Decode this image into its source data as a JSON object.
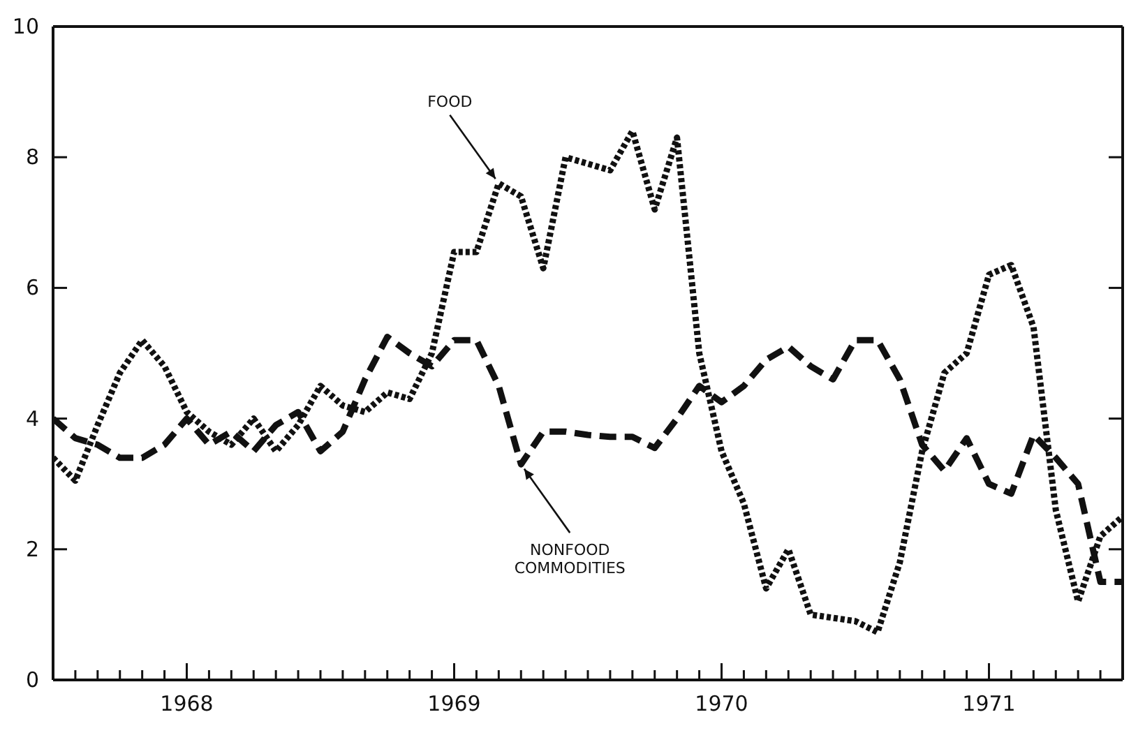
{
  "chart_data": {
    "type": "line",
    "x": [
      "1968-01",
      "1968-02",
      "1968-03",
      "1968-04",
      "1968-05",
      "1968-06",
      "1968-07",
      "1968-08",
      "1968-09",
      "1968-10",
      "1968-11",
      "1968-12",
      "1969-01",
      "1969-02",
      "1969-03",
      "1969-04",
      "1969-05",
      "1969-06",
      "1969-07",
      "1969-08",
      "1969-09",
      "1969-10",
      "1969-11",
      "1969-12",
      "1970-01",
      "1970-02",
      "1970-03",
      "1970-04",
      "1970-05",
      "1970-06",
      "1970-07",
      "1970-08",
      "1970-09",
      "1970-10",
      "1970-11",
      "1970-12",
      "1971-01",
      "1971-02",
      "1971-03",
      "1971-04",
      "1971-05",
      "1971-06",
      "1971-07",
      "1971-08",
      "1971-09",
      "1971-10",
      "1971-11",
      "1971-12",
      "1972-01"
    ],
    "series": [
      {
        "color": "#111111",
        "line_style": "dotted",
        "values": [
          3.4,
          3.05,
          3.9,
          4.7,
          5.2,
          4.8,
          4.1,
          3.8,
          3.6,
          4.0,
          3.5,
          3.9,
          4.5,
          4.2,
          4.1,
          4.4,
          4.3,
          5.0,
          6.55,
          6.55,
          7.6,
          7.4,
          6.3,
          8.0,
          7.9,
          7.8,
          8.4,
          7.2,
          8.3,
          5.0,
          3.5,
          2.7,
          1.4,
          2.0,
          1.0,
          0.95,
          0.9,
          0.73,
          1.8,
          3.5,
          4.7,
          5.0,
          6.2,
          6.35,
          5.4,
          2.6,
          1.2,
          2.2,
          2.5
        ]
      },
      {
        "color": "#111111",
        "line_style": "dashed",
        "values": [
          4.0,
          3.7,
          3.6,
          3.4,
          3.4,
          3.6,
          4.0,
          3.6,
          3.8,
          3.5,
          3.9,
          4.1,
          3.5,
          3.8,
          4.6,
          5.25,
          5.0,
          4.8,
          5.2,
          5.2,
          4.5,
          3.3,
          3.8,
          3.8,
          3.75,
          3.72,
          3.72,
          3.55,
          4.0,
          4.5,
          4.25,
          4.5,
          4.9,
          5.1,
          4.8,
          4.6,
          5.2,
          5.2,
          4.6,
          3.6,
          3.2,
          3.7,
          3.0,
          2.85,
          3.75,
          3.4,
          3.0,
          1.5,
          1.5
        ]
      }
    ],
    "annotations": [
      {
        "text": "FOOD",
        "x": "1969-09",
        "y": 7.6
      },
      {
        "text": "NONFOOD\nCOMMODITIES",
        "x": "1969-10",
        "y": 3.3
      }
    ],
    "xlim": [
      "1968-01",
      "1972-01"
    ],
    "xticks": [
      {
        "value": "1968-01",
        "label": null
      },
      {
        "value": "1968-02",
        "label": null
      },
      {
        "value": "1968-03",
        "label": null
      },
      {
        "value": "1968-04",
        "label": null
      },
      {
        "value": "1968-05",
        "label": null
      },
      {
        "value": "1968-06",
        "label": null
      },
      {
        "value": "1968-07",
        "label": "1968"
      },
      {
        "value": "1968-08",
        "label": null
      },
      {
        "value": "1968-09",
        "label": null
      },
      {
        "value": "1968-10",
        "label": null
      },
      {
        "value": "1968-11",
        "label": null
      },
      {
        "value": "1968-12",
        "label": null
      },
      {
        "value": "1969-01",
        "label": null
      },
      {
        "value": "1969-02",
        "label": null
      },
      {
        "value": "1969-03",
        "label": null
      },
      {
        "value": "1969-04",
        "label": null
      },
      {
        "value": "1969-05",
        "label": null
      },
      {
        "value": "1969-06",
        "label": null
      },
      {
        "value": "1969-07",
        "label": "1969"
      },
      {
        "value": "1969-08",
        "label": null
      },
      {
        "value": "1969-09",
        "label": null
      },
      {
        "value": "1969-10",
        "label": null
      },
      {
        "value": "1969-11",
        "label": null
      },
      {
        "value": "1969-12",
        "label": null
      },
      {
        "value": "1970-01",
        "label": null
      },
      {
        "value": "1970-02",
        "label": null
      },
      {
        "value": "1970-03",
        "label": null
      },
      {
        "value": "1970-04",
        "label": null
      },
      {
        "value": "1970-05",
        "label": null
      },
      {
        "value": "1970-06",
        "label": null
      },
      {
        "value": "1970-07",
        "label": "1970"
      },
      {
        "value": "1970-08",
        "label": null
      },
      {
        "value": "1970-09",
        "label": null
      },
      {
        "value": "1970-10",
        "label": null
      },
      {
        "value": "1970-11",
        "label": null
      },
      {
        "value": "1970-12",
        "label": null
      },
      {
        "value": "1971-01",
        "label": null
      },
      {
        "value": "1971-02",
        "label": null
      },
      {
        "value": "1971-03",
        "label": null
      },
      {
        "value": "1971-04",
        "label": null
      },
      {
        "value": "1971-05",
        "label": null
      },
      {
        "value": "1971-06",
        "label": null
      },
      {
        "value": "1971-07",
        "label": "1971"
      },
      {
        "value": "1971-08",
        "label": null
      },
      {
        "value": "1971-09",
        "label": null
      },
      {
        "value": "1971-10",
        "label": null
      },
      {
        "value": "1971-11",
        "label": null
      },
      {
        "value": "1971-12",
        "label": null
      },
      {
        "value": "1972-01",
        "label": null
      }
    ],
    "ylim": [
      0,
      10
    ],
    "yticks": [
      0,
      2,
      4,
      6,
      8,
      10
    ],
    "marker": "none"
  }
}
